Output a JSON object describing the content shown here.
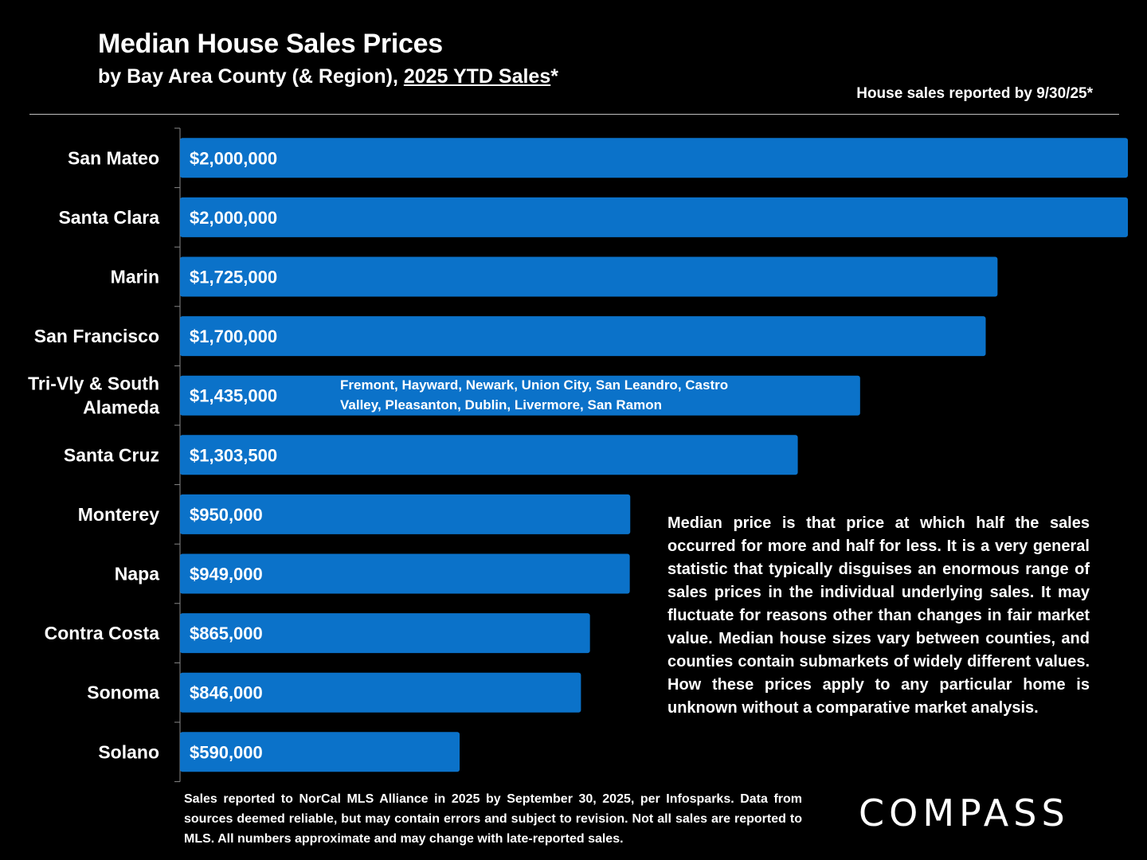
{
  "header": {
    "title": "Median House Sales Prices",
    "subtitle_prefix": "by Bay Area County (& Region), ",
    "subtitle_underlined": "2025 YTD Sales",
    "subtitle_suffix": "*",
    "reported": "House sales reported by 9/30/25*"
  },
  "chart_data": {
    "type": "bar",
    "orientation": "horizontal",
    "title": "Median House Sales Prices",
    "subtitle": "by Bay Area County (& Region), 2025 YTD Sales*",
    "categories": [
      "San Mateo",
      "Santa Clara",
      "Marin",
      "San Francisco",
      "Tri-Vly & South Alameda",
      "Santa Cruz",
      "Monterey",
      "Napa",
      "Contra Costa",
      "Sonoma",
      "Solano"
    ],
    "category_lines": [
      [
        "San Mateo"
      ],
      [
        "Santa Clara"
      ],
      [
        "Marin"
      ],
      [
        "San Francisco"
      ],
      [
        "Tri-Vly & South",
        "Alameda"
      ],
      [
        "Santa Cruz"
      ],
      [
        "Monterey"
      ],
      [
        "Napa"
      ],
      [
        "Contra Costa"
      ],
      [
        "Sonoma"
      ],
      [
        "Solano"
      ]
    ],
    "values": [
      2000000,
      2000000,
      1725000,
      1700000,
      1435000,
      1303500,
      950000,
      949000,
      865000,
      846000,
      590000
    ],
    "value_labels": [
      "$2,000,000",
      "$2,000,000",
      "$1,725,000",
      "$1,700,000",
      "$1,435,000",
      "$1,303,500",
      "$950,000",
      "$949,000",
      "$865,000",
      "$846,000",
      "$590,000"
    ],
    "xlim": [
      0,
      2000000
    ],
    "color": "#0b72c9",
    "annotation": "Fremont, Hayward, Newark, Union City, San Leandro, Castro Valley, Pleasanton, Dublin, Livermore, San Ramon"
  },
  "explanation": "Median price is that price at which half the sales occurred for more and half for less. It is a very general statistic that typically disguises an enormous range of sales prices in the individual underlying sales. It may fluctuate for reasons other than changes in fair market value. Median house sizes vary between counties, and counties contain submarkets of widely different values. How these prices apply to any particular home is unknown without a comparative market analysis.",
  "footnote": "Sales reported to NorCal MLS Alliance in 2025 by September 30, 2025, per Infosparks. Data from sources deemed reliable, but may contain errors and subject to revision. Not all sales are reported to MLS. All numbers approximate and may change with late-reported sales.",
  "logo": "COMPASS"
}
